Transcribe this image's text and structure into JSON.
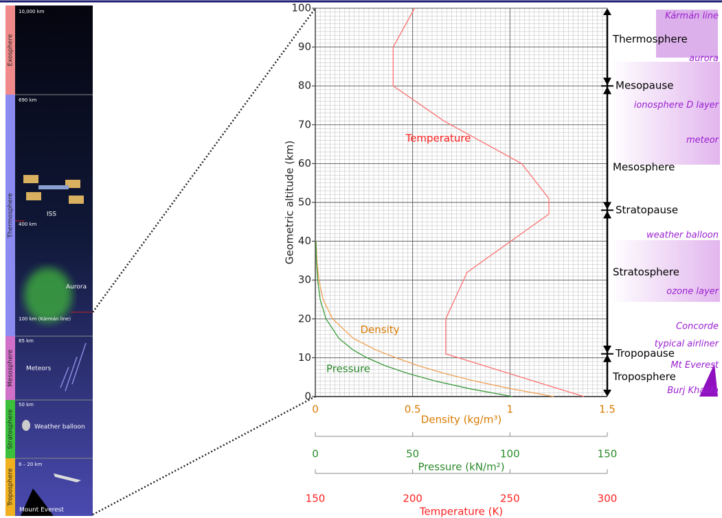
{
  "chart_data": {
    "type": "line",
    "y_axis": {
      "title": "Geometric altitude (km)",
      "ylim": [
        0,
        100
      ],
      "yticks": [
        0,
        10,
        20,
        30,
        40,
        50,
        60,
        70,
        80,
        90,
        100
      ],
      "grid": true
    },
    "axes": [
      {
        "title": "Density (kg/m³)",
        "color": "#d97a00",
        "xlim": [
          0,
          1.5
        ],
        "xticks": [
          0,
          0.5,
          1,
          1.5
        ],
        "series": {
          "name": "Density",
          "color": "#f0a050",
          "altitudes": [
            0,
            2,
            4,
            6,
            8,
            10,
            12,
            15,
            20,
            25,
            30,
            35,
            40
          ],
          "values": [
            1.225,
            1.007,
            0.819,
            0.66,
            0.526,
            0.414,
            0.312,
            0.195,
            0.089,
            0.04,
            0.018,
            0.008,
            0.004
          ]
        }
      },
      {
        "title": "Pressure (kN/m²)",
        "color": "#2a8a2a",
        "xlim": [
          0,
          150
        ],
        "xticks": [
          0,
          50,
          100,
          150
        ],
        "series": {
          "name": "Pressure",
          "color": "#3a9a3a",
          "altitudes": [
            0,
            2,
            4,
            6,
            8,
            10,
            12,
            15,
            20,
            25,
            30,
            35,
            40
          ],
          "values": [
            101.3,
            79.5,
            61.6,
            47.2,
            35.6,
            26.5,
            19.4,
            12.1,
            5.5,
            2.5,
            1.2,
            0.57,
            0.29
          ]
        }
      },
      {
        "title": "Temperature (K)",
        "color": "#ff2020",
        "xlim": [
          150,
          300
        ],
        "xticks": [
          150,
          200,
          250,
          300
        ],
        "series": {
          "name": "Temperature",
          "color": "#ff7070",
          "altitudes": [
            0,
            11,
            20,
            32,
            47,
            51,
            60,
            71,
            80,
            90,
            100
          ],
          "values": [
            288,
            217,
            217,
            228,
            270,
            270,
            256,
            216,
            190,
            190,
            201
          ]
        }
      }
    ],
    "layers": [
      {
        "text": "Thermosphere",
        "altitude": 92
      },
      {
        "text": "Mesosphere",
        "altitude": 59
      },
      {
        "text": "Stratosphere",
        "altitude": 32
      },
      {
        "text": "Troposphere",
        "altitude": 5
      }
    ],
    "pauses": [
      {
        "text": "Mesopause",
        "altitude": 80
      },
      {
        "text": "Stratopause",
        "altitude": 48
      },
      {
        "text": "Tropopause",
        "altitude": 11
      }
    ],
    "features": [
      {
        "text": "Kármán line",
        "altitude": 98
      },
      {
        "text": "aurora",
        "altitude": 87
      },
      {
        "text": "ionosphere D layer",
        "altitude": 75
      },
      {
        "text": "meteor",
        "altitude": 66
      },
      {
        "text": "weather balloon",
        "altitude": 41.5
      },
      {
        "text": "ozone layer",
        "altitude": 27
      },
      {
        "text": "Concorde",
        "altitude": 18
      },
      {
        "text": "typical airliner",
        "altitude": 13.5
      },
      {
        "text": "Mt Everest",
        "altitude": 8
      },
      {
        "text": "Burj Khalifa",
        "altitude": 1.5
      }
    ]
  },
  "illustration": {
    "layers": [
      {
        "name": "Exosphere",
        "color": "#f08a8a"
      },
      {
        "name": "Thermosphere",
        "color": "#8a8af0"
      },
      {
        "name": "Mesosphere",
        "color": "#d070c8"
      },
      {
        "name": "Stratosphere",
        "color": "#3cc03c"
      },
      {
        "name": "Troposphere",
        "color": "#f0b020"
      }
    ],
    "labels": [
      "10,000 km",
      "690 km",
      "ISS",
      "400 km",
      "Aurora",
      "100 km (Kármán line)",
      "85 km",
      "Meteors",
      "50 km",
      "Weather balloon",
      "6 – 20 km",
      "Mount Everest"
    ]
  }
}
